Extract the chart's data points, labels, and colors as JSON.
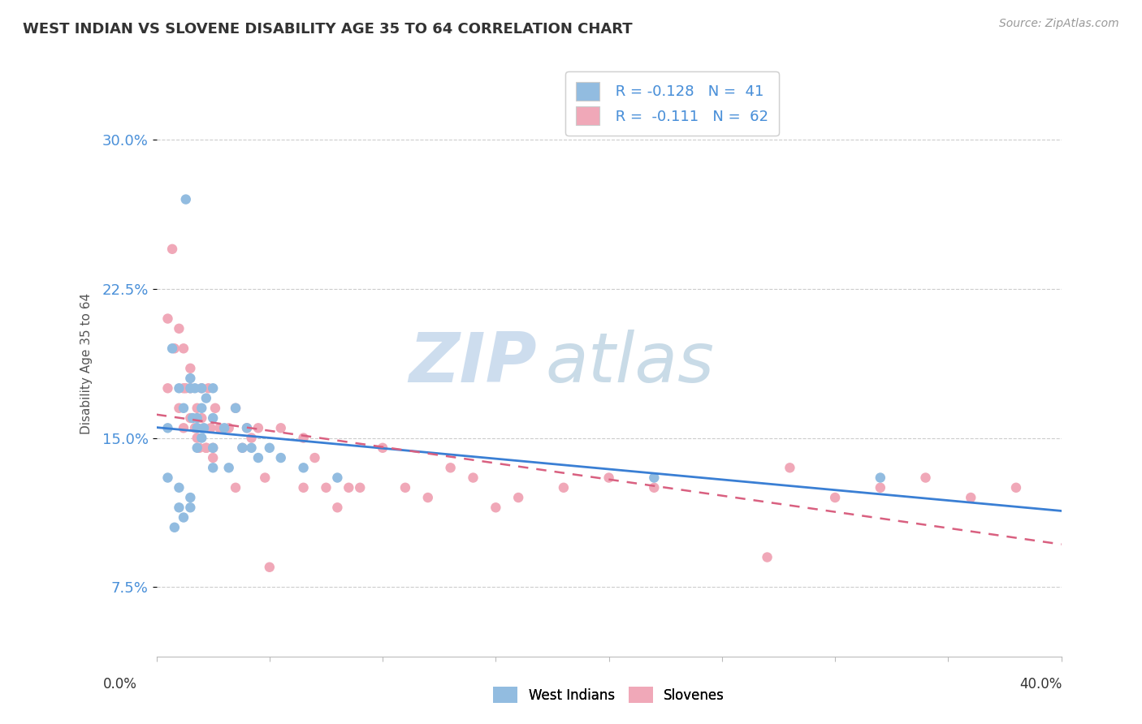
{
  "title": "WEST INDIAN VS SLOVENE DISABILITY AGE 35 TO 64 CORRELATION CHART",
  "source": "Source: ZipAtlas.com",
  "ylabel": "Disability Age 35 to 64",
  "yticks": [
    "7.5%",
    "15.0%",
    "22.5%",
    "30.0%"
  ],
  "ytick_vals": [
    0.075,
    0.15,
    0.225,
    0.3
  ],
  "xlim": [
    0.0,
    0.4
  ],
  "ylim": [
    0.04,
    0.335
  ],
  "blue_color": "#92bce0",
  "pink_color": "#f0a8b8",
  "trend_blue": "#3a7fd4",
  "trend_pink": "#d96080",
  "label_color": "#4a90d9",
  "watermark_zip_color": "#c8d8ea",
  "watermark_atlas_color": "#b0c8e0",
  "west_indian_x": [
    0.005,
    0.013,
    0.007,
    0.01,
    0.012,
    0.015,
    0.015,
    0.016,
    0.017,
    0.018,
    0.02,
    0.02,
    0.021,
    0.022,
    0.018,
    0.025,
    0.025,
    0.02,
    0.03,
    0.032,
    0.035,
    0.038,
    0.04,
    0.042,
    0.045,
    0.025,
    0.05,
    0.055,
    0.065,
    0.08,
    0.025,
    0.005,
    0.01,
    0.015,
    0.015,
    0.01,
    0.012,
    0.008,
    0.018,
    0.22,
    0.32
  ],
  "west_indian_y": [
    0.155,
    0.27,
    0.195,
    0.175,
    0.165,
    0.18,
    0.175,
    0.16,
    0.175,
    0.16,
    0.175,
    0.165,
    0.155,
    0.17,
    0.155,
    0.175,
    0.16,
    0.15,
    0.155,
    0.135,
    0.165,
    0.145,
    0.155,
    0.145,
    0.14,
    0.145,
    0.145,
    0.14,
    0.135,
    0.13,
    0.135,
    0.13,
    0.125,
    0.12,
    0.115,
    0.115,
    0.11,
    0.105,
    0.145,
    0.13,
    0.13
  ],
  "slovene_x": [
    0.005,
    0.008,
    0.005,
    0.007,
    0.01,
    0.012,
    0.01,
    0.012,
    0.013,
    0.015,
    0.015,
    0.015,
    0.017,
    0.018,
    0.018,
    0.019,
    0.02,
    0.02,
    0.022,
    0.023,
    0.024,
    0.025,
    0.026,
    0.028,
    0.025,
    0.032,
    0.035,
    0.038,
    0.04,
    0.042,
    0.045,
    0.048,
    0.05,
    0.055,
    0.065,
    0.065,
    0.07,
    0.075,
    0.08,
    0.085,
    0.09,
    0.1,
    0.11,
    0.12,
    0.13,
    0.14,
    0.15,
    0.16,
    0.18,
    0.2,
    0.22,
    0.27,
    0.28,
    0.3,
    0.32,
    0.34,
    0.36,
    0.38,
    0.012,
    0.018,
    0.022,
    0.035
  ],
  "slovene_y": [
    0.21,
    0.195,
    0.175,
    0.245,
    0.205,
    0.175,
    0.165,
    0.195,
    0.175,
    0.175,
    0.185,
    0.16,
    0.155,
    0.155,
    0.165,
    0.145,
    0.16,
    0.175,
    0.145,
    0.175,
    0.155,
    0.14,
    0.165,
    0.155,
    0.145,
    0.155,
    0.165,
    0.145,
    0.155,
    0.15,
    0.155,
    0.13,
    0.085,
    0.155,
    0.15,
    0.125,
    0.14,
    0.125,
    0.115,
    0.125,
    0.125,
    0.145,
    0.125,
    0.12,
    0.135,
    0.13,
    0.115,
    0.12,
    0.125,
    0.13,
    0.125,
    0.09,
    0.135,
    0.12,
    0.125,
    0.13,
    0.12,
    0.125,
    0.155,
    0.15,
    0.145,
    0.125
  ]
}
